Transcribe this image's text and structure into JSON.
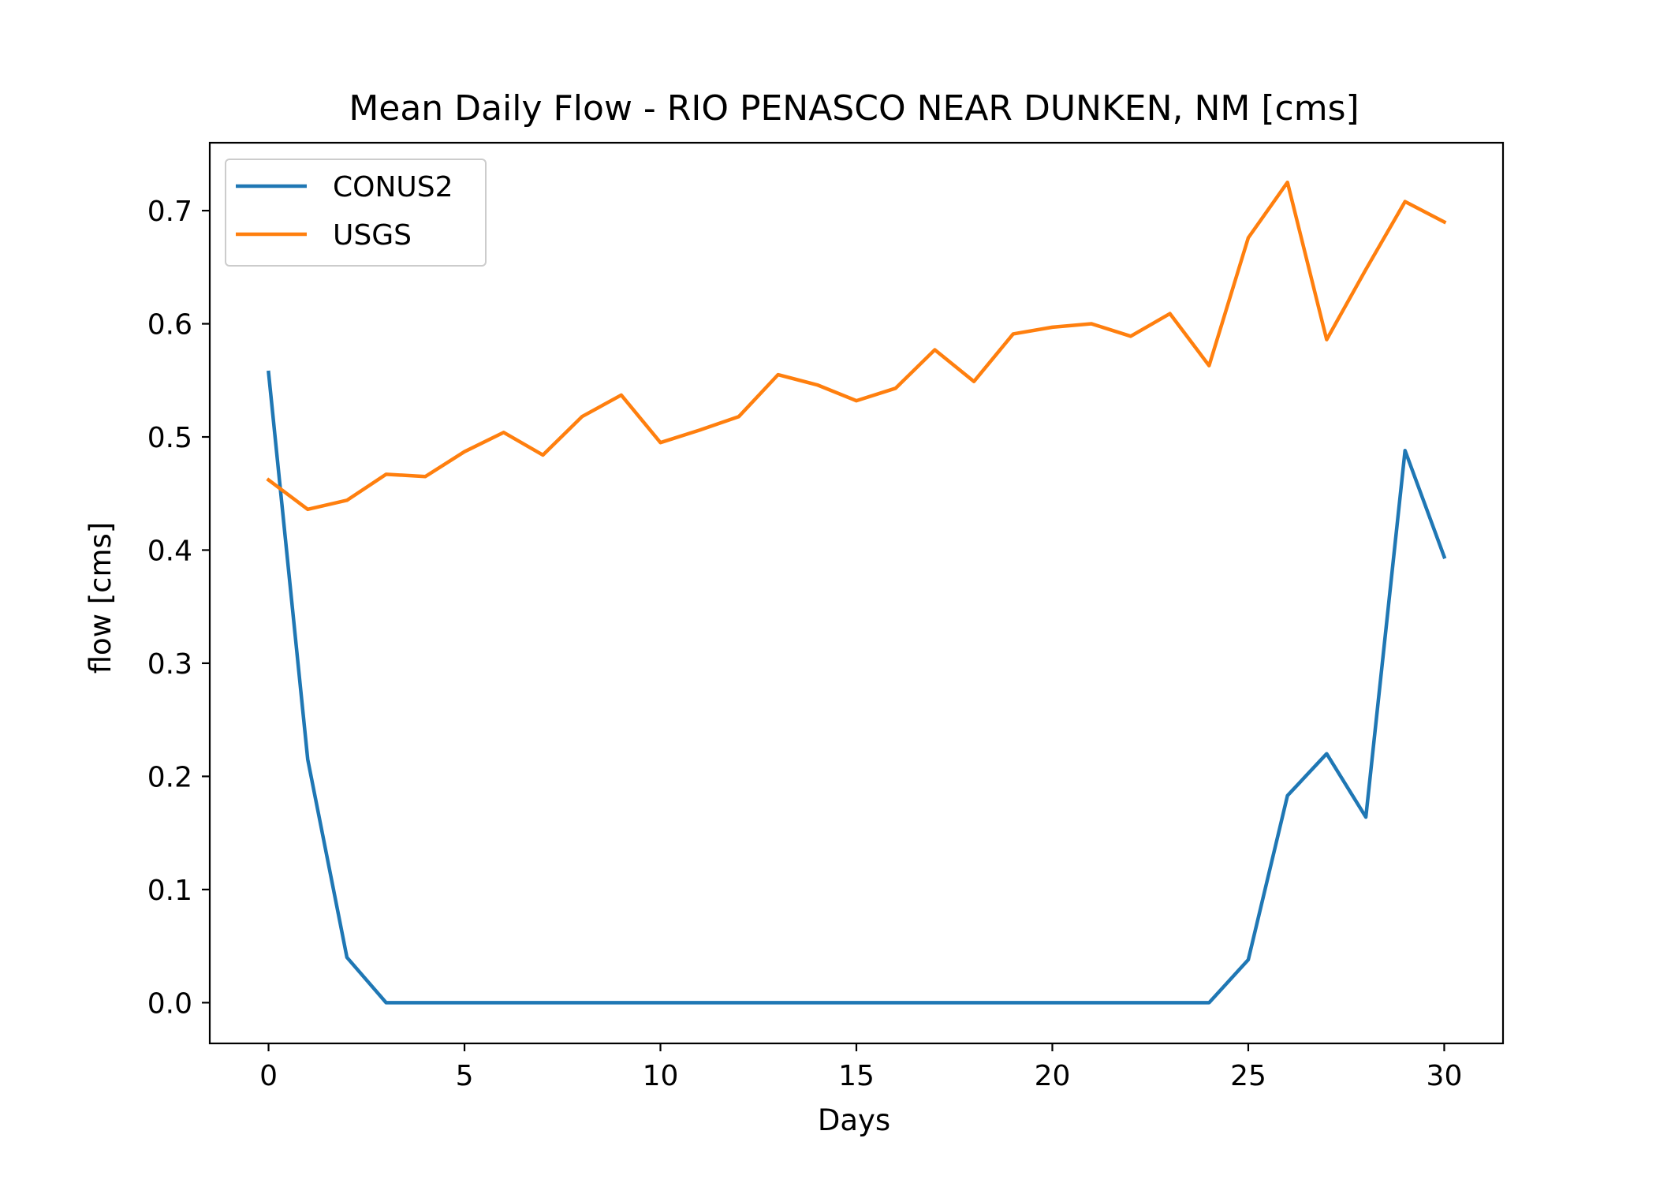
{
  "chart_data": {
    "type": "line",
    "title": "Mean Daily Flow - RIO PENASCO NEAR DUNKEN, NM [cms]",
    "xlabel": "Days",
    "ylabel": "flow [cms]",
    "xlim": [
      -1.5,
      31.5
    ],
    "ylim": [
      -0.036,
      0.76
    ],
    "xticks": [
      0,
      5,
      10,
      15,
      20,
      25,
      30
    ],
    "xtick_labels": [
      "0",
      "5",
      "10",
      "15",
      "20",
      "25",
      "30"
    ],
    "yticks": [
      0.0,
      0.1,
      0.2,
      0.3,
      0.4,
      0.5,
      0.6,
      0.7
    ],
    "ytick_labels": [
      "0.0",
      "0.1",
      "0.2",
      "0.3",
      "0.4",
      "0.5",
      "0.6",
      "0.7"
    ],
    "grid": false,
    "legend_position": "upper-left",
    "x": [
      0,
      1,
      2,
      3,
      4,
      5,
      6,
      7,
      8,
      9,
      10,
      11,
      12,
      13,
      14,
      15,
      16,
      17,
      18,
      19,
      20,
      21,
      22,
      23,
      24,
      25,
      26,
      27,
      28,
      29,
      30
    ],
    "series": [
      {
        "name": "CONUS2",
        "color": "#1f77b4",
        "values": [
          0.557,
          0.215,
          0.04,
          0.0,
          0.0,
          0.0,
          0.0,
          0.0,
          0.0,
          0.0,
          0.0,
          0.0,
          0.0,
          0.0,
          0.0,
          0.0,
          0.0,
          0.0,
          0.0,
          0.0,
          0.0,
          0.0,
          0.0,
          0.0,
          0.0,
          0.038,
          0.183,
          0.22,
          0.164,
          0.488,
          0.394
        ]
      },
      {
        "name": "USGS",
        "color": "#ff7f0e",
        "values": [
          0.462,
          0.436,
          0.444,
          0.467,
          0.465,
          0.487,
          0.504,
          0.484,
          0.518,
          0.537,
          0.495,
          0.506,
          0.518,
          0.555,
          0.546,
          0.532,
          0.543,
          0.577,
          0.549,
          0.591,
          0.597,
          0.6,
          0.589,
          0.609,
          0.563,
          0.676,
          0.725,
          0.586,
          0.648,
          0.708,
          0.69
        ]
      }
    ]
  }
}
